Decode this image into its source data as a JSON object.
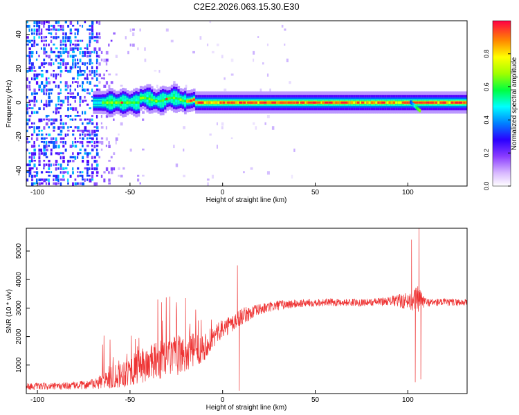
{
  "title": "C2E2.2026.063.15.30.E30",
  "chart_data": [
    {
      "type": "heatmap",
      "xlabel": "Height of straight line (km)",
      "ylabel": "Frequency (Hz)",
      "xlim": [
        -106,
        132
      ],
      "ylim": [
        -49,
        48
      ],
      "xticks": [
        -100,
        -50,
        0,
        50,
        100
      ],
      "yticks": [
        -40,
        -20,
        0,
        20,
        40
      ],
      "colorbar": {
        "label": "Normalized spectral amplitude",
        "range": [
          0,
          1
        ],
        "ticks": [
          0.0,
          0.2,
          0.4,
          0.6,
          0.8
        ],
        "colormap": [
          "#ffffff",
          "#a070ff",
          "#5000ff",
          "#0050ff",
          "#00ffff",
          "#00ff40",
          "#a0ff00",
          "#ffff00",
          "#ff8000",
          "#ff0040"
        ]
      },
      "band": {
        "center_hz": 0,
        "segments": [
          {
            "x": [
              -105,
              -68
            ],
            "pattern": "scattered noise, full frequency range",
            "level": 0.25
          },
          {
            "x": [
              -68,
              -20
            ],
            "pattern": "broadened band +/-3 Hz",
            "level": 0.55
          },
          {
            "x": [
              -20,
              132
            ],
            "pattern": "narrow band +/-2 Hz",
            "level": 0.8
          }
        ]
      }
    },
    {
      "type": "line",
      "xlabel": "Height of straight line (km)",
      "ylabel": "SNR (10 * v/v)",
      "xlim": [
        -106,
        132
      ],
      "ylim": [
        0,
        5800
      ],
      "xticks": [
        -100,
        -50,
        0,
        50,
        100
      ],
      "yticks": [
        1000,
        2000,
        3000,
        4000,
        5000
      ],
      "color": "#ee3333",
      "series_envelope": {
        "x": [
          -106,
          -90,
          -75,
          -68,
          -60,
          -50,
          -40,
          -30,
          -20,
          -10,
          0,
          5,
          10,
          20,
          30,
          40,
          50,
          60,
          70,
          80,
          90,
          95,
          100,
          103,
          105,
          108,
          110,
          120,
          132
        ],
        "y": [
          250,
          250,
          300,
          350,
          600,
          800,
          1050,
          1250,
          1400,
          1650,
          2300,
          2450,
          2700,
          2950,
          3100,
          3150,
          3200,
          3200,
          3200,
          3200,
          3250,
          3250,
          3250,
          3300,
          3300,
          3250,
          3200,
          3200,
          3200
        ],
        "noise": [
          120,
          120,
          150,
          200,
          450,
          550,
          650,
          700,
          700,
          500,
          300,
          350,
          300,
          200,
          180,
          150,
          140,
          130,
          130,
          130,
          150,
          250,
          300,
          400,
          500,
          300,
          150,
          130,
          130
        ]
      },
      "spikes": [
        {
          "x": -35,
          "y": 3300
        },
        {
          "x": -33,
          "y": 3200
        },
        {
          "x": -20,
          "y": 3350
        },
        {
          "x": 8,
          "y": 4500
        },
        {
          "x": 9,
          "y": 100
        },
        {
          "x": 102,
          "y": 5400
        },
        {
          "x": 104,
          "y": 400
        },
        {
          "x": 106,
          "y": 5800
        },
        {
          "x": 107,
          "y": 500
        }
      ]
    }
  ]
}
